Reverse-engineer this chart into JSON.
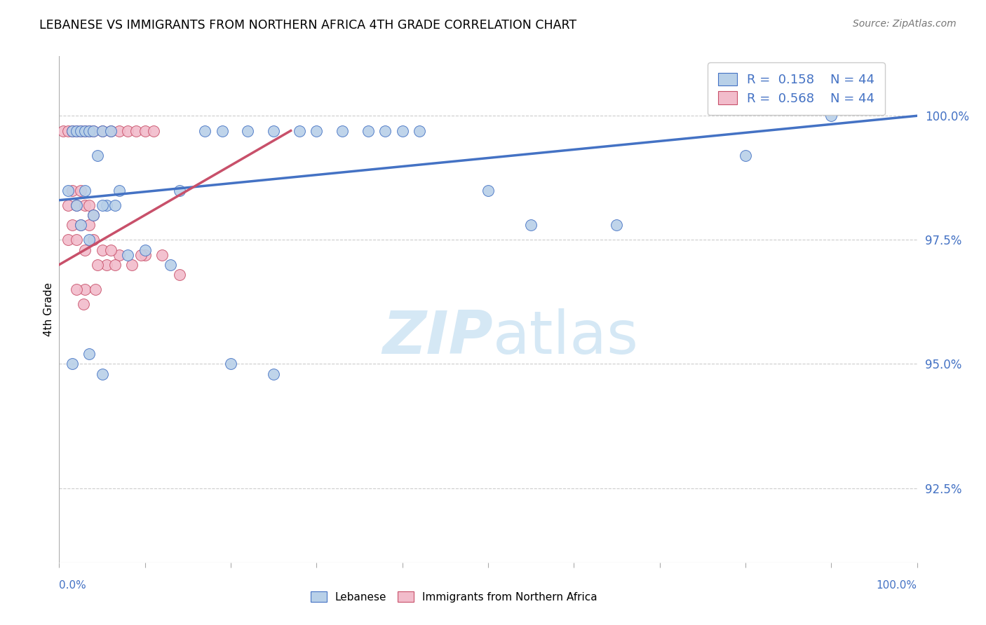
{
  "title": "LEBANESE VS IMMIGRANTS FROM NORTHERN AFRICA 4TH GRADE CORRELATION CHART",
  "source": "Source: ZipAtlas.com",
  "ylabel": "4th Grade",
  "ytick_values": [
    92.5,
    95.0,
    97.5,
    100.0
  ],
  "xmin": 0.0,
  "xmax": 100.0,
  "ymin": 91.0,
  "ymax": 101.2,
  "blue_color": "#b8d0e8",
  "pink_color": "#f2bccb",
  "line_blue": "#4472c4",
  "line_pink": "#c8506a",
  "text_blue": "#4472c4",
  "watermark_color": "#d5e8f5",
  "blue_points_x": [
    1.5,
    2.0,
    2.5,
    3.0,
    3.5,
    4.0,
    5.0,
    6.0,
    1.0,
    2.0,
    3.0,
    4.5,
    5.5,
    6.5,
    7.0,
    2.5,
    3.5,
    4.0,
    5.0,
    14.0,
    17.0,
    19.0,
    22.0,
    25.0,
    28.0,
    30.0,
    33.0,
    36.0,
    38.0,
    40.0,
    42.0,
    50.0,
    55.0,
    65.0,
    80.0,
    90.0,
    1.5,
    3.5,
    5.0,
    8.0,
    10.0,
    13.0,
    20.0,
    25.0
  ],
  "blue_points_y": [
    99.7,
    99.7,
    99.7,
    99.7,
    99.7,
    99.7,
    99.7,
    99.7,
    98.5,
    98.2,
    98.5,
    99.2,
    98.2,
    98.2,
    98.5,
    97.8,
    97.5,
    98.0,
    98.2,
    98.5,
    99.7,
    99.7,
    99.7,
    99.7,
    99.7,
    99.7,
    99.7,
    99.7,
    99.7,
    99.7,
    99.7,
    98.5,
    97.8,
    97.8,
    99.2,
    100.0,
    95.0,
    95.2,
    94.8,
    97.2,
    97.3,
    97.0,
    95.0,
    94.8
  ],
  "pink_points_x": [
    0.5,
    1.0,
    1.5,
    2.0,
    2.5,
    3.0,
    3.5,
    4.0,
    5.0,
    6.0,
    7.0,
    8.0,
    9.0,
    10.0,
    11.0,
    1.0,
    1.5,
    2.0,
    2.5,
    3.0,
    3.5,
    4.0,
    1.0,
    2.0,
    3.0,
    4.0,
    5.0,
    1.5,
    2.5,
    3.5,
    14.0,
    10.0,
    12.0,
    7.0,
    6.0,
    5.5,
    8.5,
    9.5,
    4.5,
    3.0,
    2.0,
    6.5,
    2.8,
    4.2
  ],
  "pink_points_y": [
    99.7,
    99.7,
    99.7,
    99.7,
    99.7,
    99.7,
    99.7,
    99.7,
    99.7,
    99.7,
    99.7,
    99.7,
    99.7,
    99.7,
    99.7,
    98.2,
    98.5,
    98.2,
    98.5,
    98.2,
    98.2,
    98.0,
    97.5,
    97.5,
    97.3,
    97.5,
    97.3,
    97.8,
    97.8,
    97.8,
    96.8,
    97.2,
    97.2,
    97.2,
    97.3,
    97.0,
    97.0,
    97.2,
    97.0,
    96.5,
    96.5,
    97.0,
    96.2,
    96.5
  ],
  "blue_line_x0": 0.0,
  "blue_line_x1": 100.0,
  "blue_line_y0": 98.3,
  "blue_line_y1": 100.0,
  "pink_line_x0": 0.0,
  "pink_line_x1": 27.0,
  "pink_line_y0": 97.0,
  "pink_line_y1": 99.7
}
